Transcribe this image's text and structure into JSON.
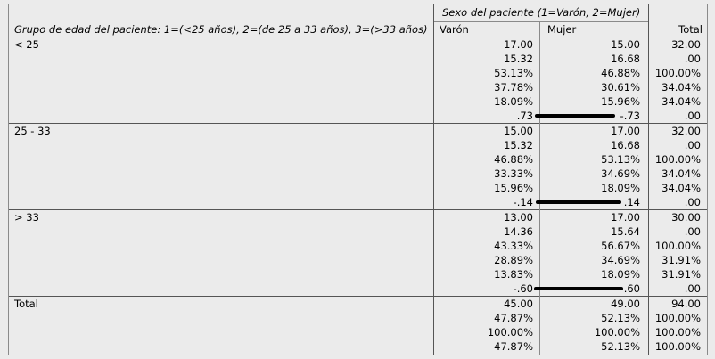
{
  "header": {
    "row_var_title": "Grupo de edad del paciente: 1=(<25 años), 2=(de 25 a 33 años), 3=(>33 años)",
    "col_var_title": "Sexo del paciente (1=Varón, 2=Mujer)",
    "col_varon": "Varón",
    "col_mujer": "Mujer",
    "col_total": "Total"
  },
  "groups": [
    {
      "label": "< 25",
      "rows": [
        [
          "17.00",
          "15.00",
          "32.00"
        ],
        [
          "15.32",
          "16.68",
          ".00"
        ],
        [
          "53.13%",
          "46.88%",
          "100.00%"
        ],
        [
          "37.78%",
          "30.61%",
          "34.04%"
        ],
        [
          "18.09%",
          "15.96%",
          "34.04%"
        ],
        [
          ".73",
          "-.73",
          ".00"
        ]
      ]
    },
    {
      "label": "25 - 33",
      "rows": [
        [
          "15.00",
          "17.00",
          "32.00"
        ],
        [
          "15.32",
          "16.68",
          ".00"
        ],
        [
          "46.88%",
          "53.13%",
          "100.00%"
        ],
        [
          "33.33%",
          "34.69%",
          "34.04%"
        ],
        [
          "15.96%",
          "18.09%",
          "34.04%"
        ],
        [
          "-.14",
          ".14",
          ".00"
        ]
      ]
    },
    {
      "label": "> 33",
      "rows": [
        [
          "13.00",
          "17.00",
          "30.00"
        ],
        [
          "14.36",
          "15.64",
          ".00"
        ],
        [
          "43.33%",
          "56.67%",
          "100.00%"
        ],
        [
          "28.89%",
          "34.69%",
          "31.91%"
        ],
        [
          "13.83%",
          "18.09%",
          "31.91%"
        ],
        [
          "-.60",
          ".60",
          ".00"
        ]
      ]
    },
    {
      "label": "Total",
      "rows": [
        [
          "45.00",
          "49.00",
          "94.00"
        ],
        [
          "47.87%",
          "52.13%",
          "100.00%"
        ],
        [
          "100.00%",
          "100.00%",
          "100.00%"
        ],
        [
          "47.87%",
          "52.13%",
          "100.00%"
        ]
      ]
    }
  ]
}
